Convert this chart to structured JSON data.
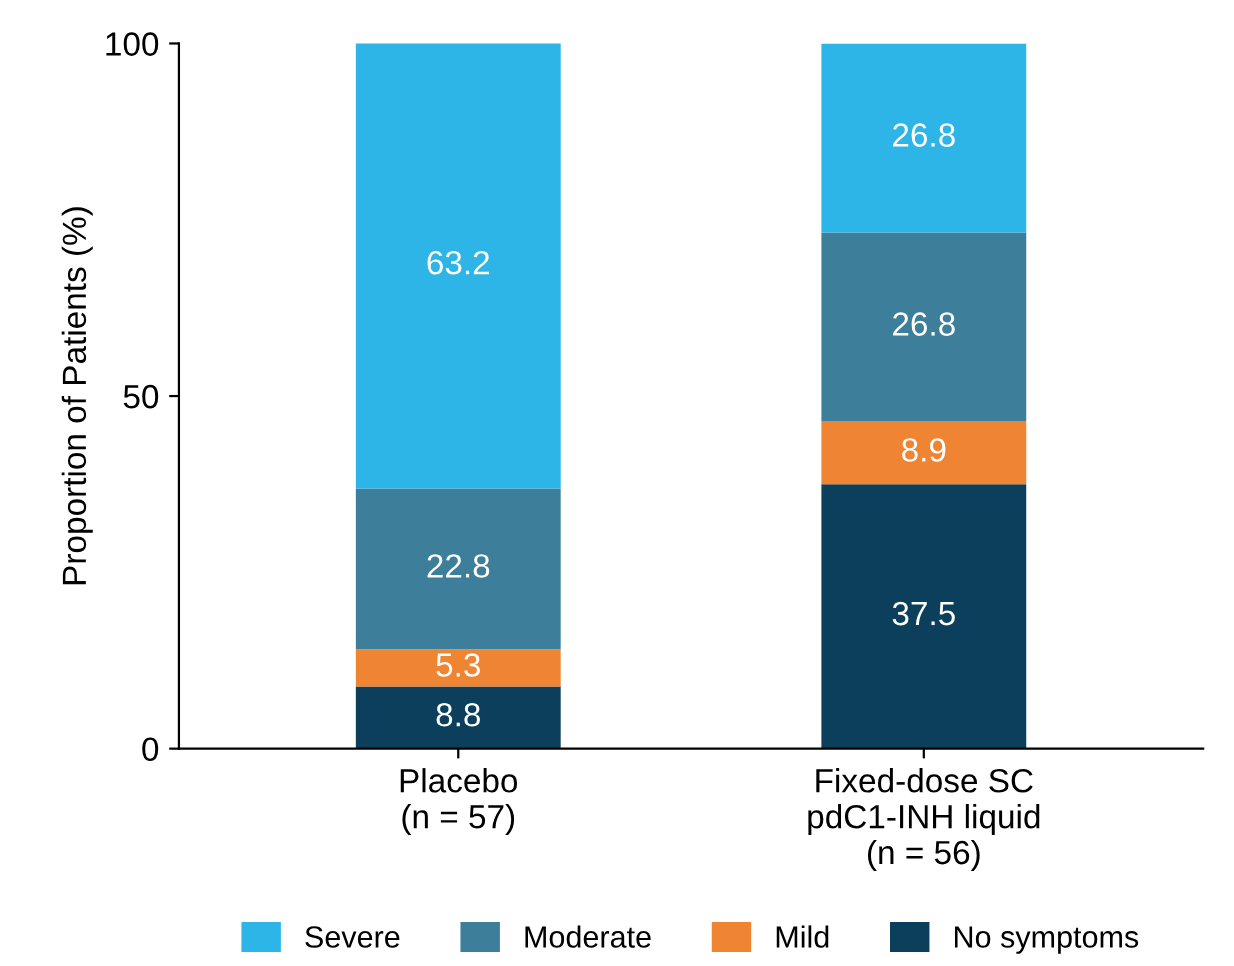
{
  "chart_data": {
    "type": "bar",
    "stacked": true,
    "ylabel": "Proportion of Patients (%)",
    "categories": [
      "Placebo\n(n = 57)",
      "Fixed-dose SC\npdC1-INH liquid\n(n = 56)"
    ],
    "series": [
      {
        "name": "No symptoms",
        "color": "#0b3f5c",
        "values": [
          8.8,
          37.5
        ]
      },
      {
        "name": "Mild",
        "color": "#ef8433",
        "values": [
          5.3,
          8.9
        ]
      },
      {
        "name": "Moderate",
        "color": "#3d7e9a",
        "values": [
          22.8,
          26.8
        ]
      },
      {
        "name": "Severe",
        "color": "#2cb5e6",
        "values": [
          63.2,
          26.8
        ]
      }
    ],
    "ylim": [
      0,
      100
    ],
    "yticks": [
      0,
      50,
      100
    ],
    "grid": false,
    "legend": "bottom",
    "data_labels": true
  }
}
